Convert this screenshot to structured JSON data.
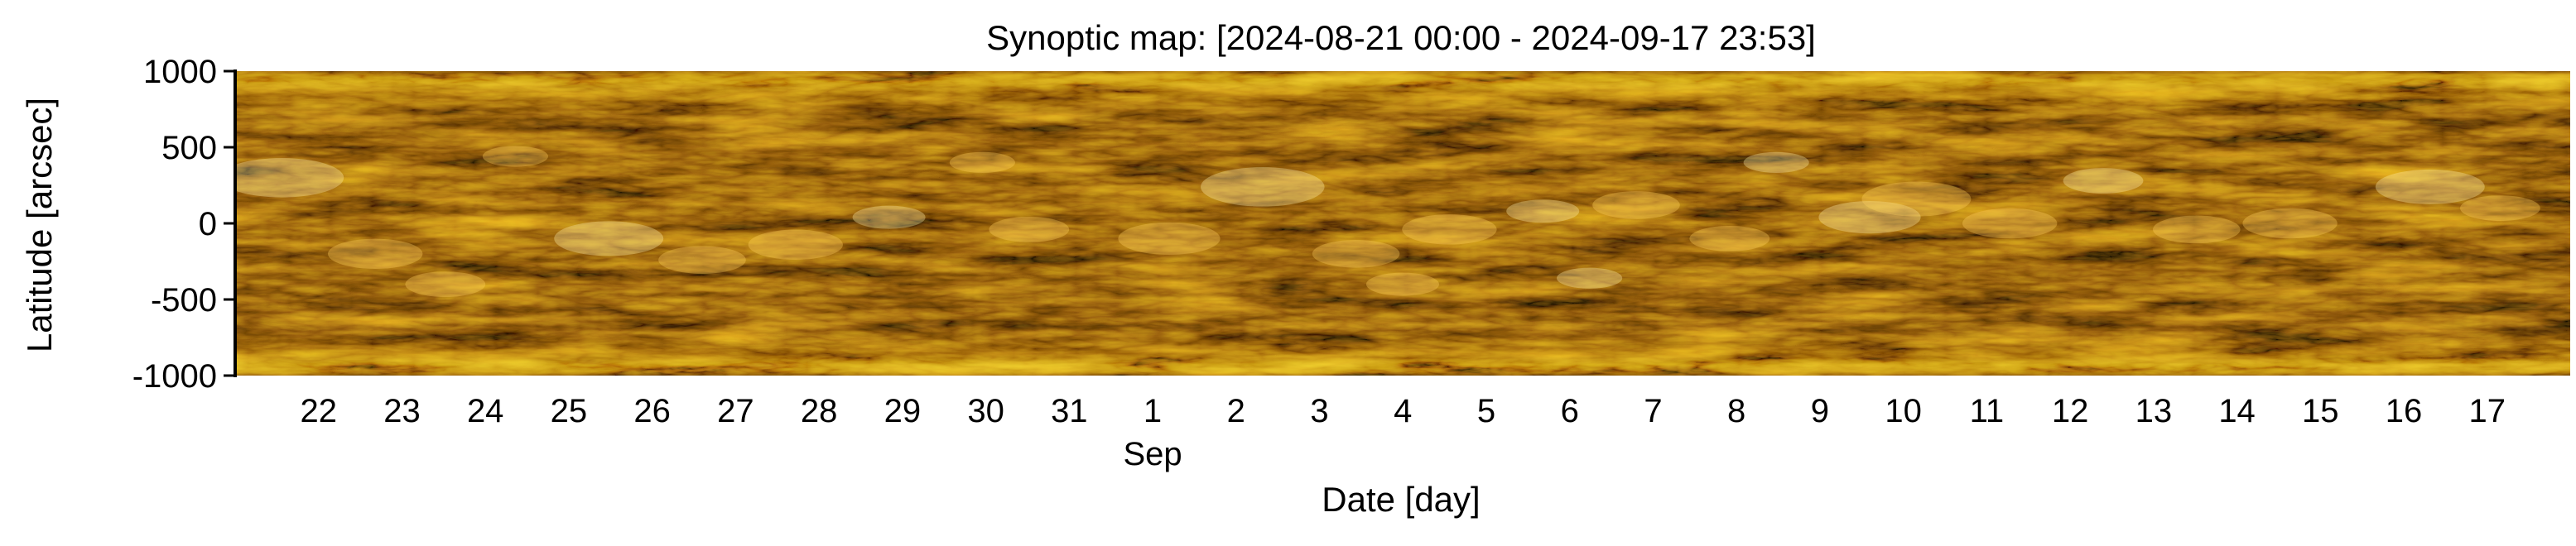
{
  "chart_data": {
    "type": "heatmap",
    "title": "Synoptic map: [2024-08-21 00:00 - 2024-09-17 23:53]",
    "xlabel": "Date [day]",
    "ylabel": "Latitude [arcsec]",
    "x_range": [
      "2024-08-21 00:00",
      "2024-09-17 23:53"
    ],
    "ylim": [
      -1000,
      1000
    ],
    "y_ticks": [
      1000,
      500,
      0,
      -500,
      -1000
    ],
    "y_tick_labels": [
      "1000",
      "500",
      "0",
      "-500",
      "-1000"
    ],
    "x_ticks": [
      {
        "date": "2024-08-22",
        "label": "22"
      },
      {
        "date": "2024-08-23",
        "label": "23"
      },
      {
        "date": "2024-08-24",
        "label": "24"
      },
      {
        "date": "2024-08-25",
        "label": "25"
      },
      {
        "date": "2024-08-26",
        "label": "26"
      },
      {
        "date": "2024-08-27",
        "label": "27"
      },
      {
        "date": "2024-08-28",
        "label": "28"
      },
      {
        "date": "2024-08-29",
        "label": "29"
      },
      {
        "date": "2024-08-30",
        "label": "30"
      },
      {
        "date": "2024-08-31",
        "label": "31"
      },
      {
        "date": "2024-09-01",
        "label": "1",
        "sublabel": "Sep"
      },
      {
        "date": "2024-09-02",
        "label": "2"
      },
      {
        "date": "2024-09-03",
        "label": "3"
      },
      {
        "date": "2024-09-04",
        "label": "4"
      },
      {
        "date": "2024-09-05",
        "label": "5"
      },
      {
        "date": "2024-09-06",
        "label": "6"
      },
      {
        "date": "2024-09-07",
        "label": "7"
      },
      {
        "date": "2024-09-08",
        "label": "8"
      },
      {
        "date": "2024-09-09",
        "label": "9"
      },
      {
        "date": "2024-09-10",
        "label": "10"
      },
      {
        "date": "2024-09-11",
        "label": "11"
      },
      {
        "date": "2024-09-12",
        "label": "12"
      },
      {
        "date": "2024-09-13",
        "label": "13"
      },
      {
        "date": "2024-09-14",
        "label": "14"
      },
      {
        "date": "2024-09-15",
        "label": "15"
      },
      {
        "date": "2024-09-16",
        "label": "16"
      },
      {
        "date": "2024-09-17",
        "label": "17"
      }
    ],
    "colormap": [
      "#000000",
      "#3a2600",
      "#7a5200",
      "#b88000",
      "#e8b020",
      "#ffe890",
      "#ffffff"
    ],
    "grid": false
  }
}
